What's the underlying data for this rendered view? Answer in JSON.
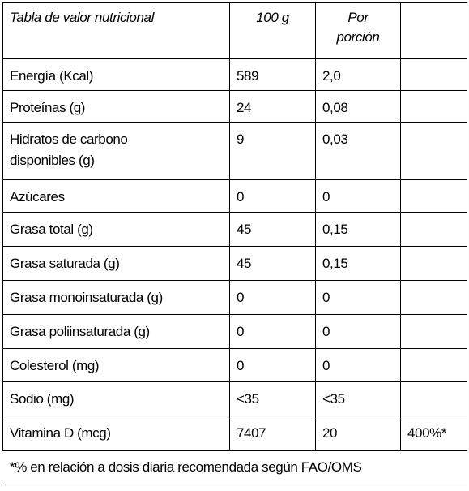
{
  "table": {
    "header": [
      "Tabla de valor nutricional",
      "100 g",
      "Por porción"
    ],
    "rows": [
      [
        "Energía (Kcal)",
        "589",
        "2,0"
      ],
      [
        "Proteínas (g)",
        "24",
        "0,08"
      ],
      [
        "Hidratos de carbono disponibles (g)",
        "9",
        "0,03"
      ],
      [
        "Azúcares",
        "0",
        "0"
      ],
      [
        "Grasa total (g)",
        "45",
        "0,15"
      ],
      [
        "Grasa saturada (g)",
        "45",
        "0,15"
      ],
      [
        "Grasa monoinsaturada (g)",
        "0",
        "0"
      ],
      [
        "Grasa poliinsaturada (g)",
        "0",
        "0"
      ],
      [
        "Colesterol (mg)",
        "0",
        "0"
      ],
      [
        "Sodio (mg)",
        "<35",
        "<35"
      ],
      [
        "Vitamina D (mcg)",
        "7407",
        "20",
        "400%*"
      ]
    ]
  },
  "footnote": "*% en relación a dosis diaria recomendada según FAO/OMS"
}
